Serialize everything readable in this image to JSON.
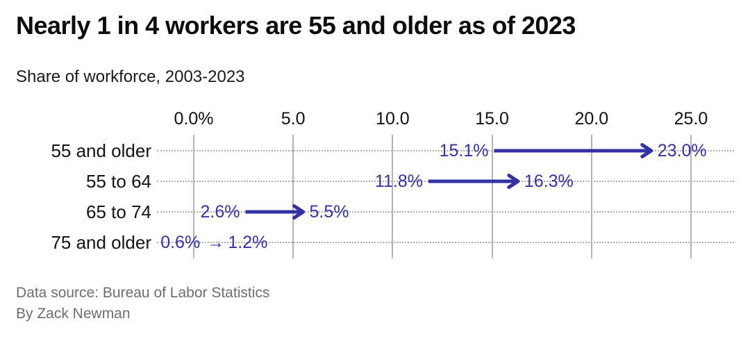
{
  "footer": {
    "source": "Data source: Bureau of Labor Statistics",
    "byline": "By Zack Newman"
  },
  "chart_data": {
    "type": "arrow",
    "title": "Nearly 1 in 4 workers are 55 and older as of 2023",
    "subtitle": "Share of workforce, 2003-2023",
    "xlabel": "",
    "ylabel": "",
    "x_axis": {
      "range": [
        0,
        27.2
      ],
      "grid": true,
      "ticks": [
        {
          "label": "0.0%",
          "value": 0
        },
        {
          "label": "5.0",
          "value": 5
        },
        {
          "label": "10.0",
          "value": 10
        },
        {
          "label": "15.0",
          "value": 15
        },
        {
          "label": "20.0",
          "value": 20
        },
        {
          "label": "25.0",
          "value": 25
        }
      ]
    },
    "categories": [
      "55 and older",
      "55 to 64",
      "65 to 74",
      "75 and older"
    ],
    "rows": [
      {
        "label": "55 and older",
        "start": 15.1,
        "end": 23.0,
        "start_label": "15.1%",
        "end_label": "23.0%",
        "compact": false
      },
      {
        "label": "55 to 64",
        "start": 11.8,
        "end": 16.3,
        "start_label": "11.8%",
        "end_label": "16.3%",
        "compact": false
      },
      {
        "label": "65 to 74",
        "start": 2.6,
        "end": 5.5,
        "start_label": "2.6%",
        "end_label": "5.5%",
        "compact": false
      },
      {
        "label": "75 and older",
        "start": 0.6,
        "end": 1.2,
        "start_label": "0.6%",
        "end_label": "1.2%",
        "compact": true
      }
    ],
    "compact_arrow_glyph": "→",
    "colors": {
      "arrow": "#3431a4",
      "value_label": "#3431a4",
      "gridline": "#b3b3b3",
      "leader_dots": "#ababab",
      "title": "#0d0d0d",
      "subtitle": "#1a1a1a",
      "row_label": "#141414",
      "source": "#6d6d6e"
    },
    "legend": "none"
  }
}
